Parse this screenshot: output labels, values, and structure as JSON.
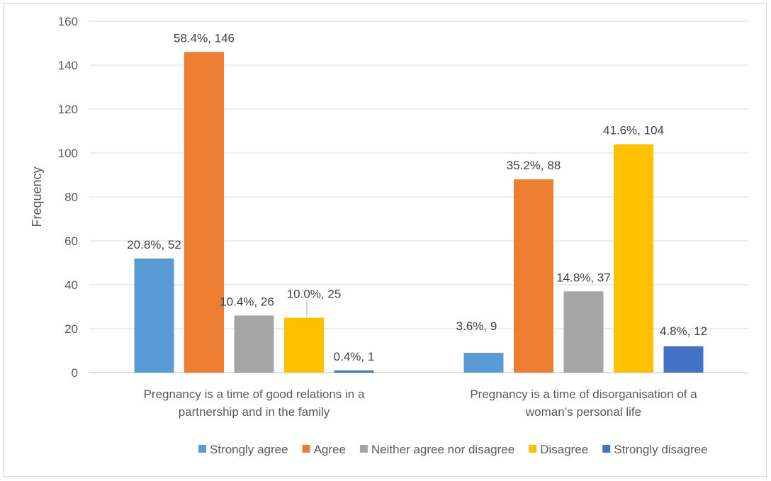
{
  "chart_data": {
    "type": "bar",
    "title": "",
    "xlabel": "",
    "ylabel": "Frequency",
    "ylim": [
      0,
      160
    ],
    "yticks": [
      0,
      20,
      40,
      60,
      80,
      100,
      120,
      140,
      160
    ],
    "grid": true,
    "legend_position": "bottom",
    "categories": [
      [
        "Pregnancy is a time of good relations in a",
        "partnership and in the family"
      ],
      [
        "Pregnancy is a time of disorganisation of a",
        "woman’s personal life"
      ]
    ],
    "series": [
      {
        "name": "Strongly agree",
        "color": "#5B9BD5",
        "values": [
          52,
          9
        ],
        "labels": [
          "20.8%, 52",
          "3.6%, 9"
        ]
      },
      {
        "name": "Agree",
        "color": "#ED7D31",
        "values": [
          146,
          88
        ],
        "labels": [
          "58.4%, 146",
          "35.2%, 88"
        ]
      },
      {
        "name": "Neither agree nor disagree",
        "color": "#A5A5A5",
        "values": [
          26,
          37
        ],
        "labels": [
          "10.4%, 26",
          "14.8%, 37"
        ]
      },
      {
        "name": "Disagree",
        "color": "#FFC000",
        "values": [
          25,
          104
        ],
        "labels": [
          "10.0%, 25",
          "41.6%, 104"
        ]
      },
      {
        "name": "Strongly disagree",
        "color": "#4472C4",
        "values": [
          1,
          12
        ],
        "labels": [
          "0.4%, 1",
          "4.8%, 12"
        ]
      }
    ]
  }
}
